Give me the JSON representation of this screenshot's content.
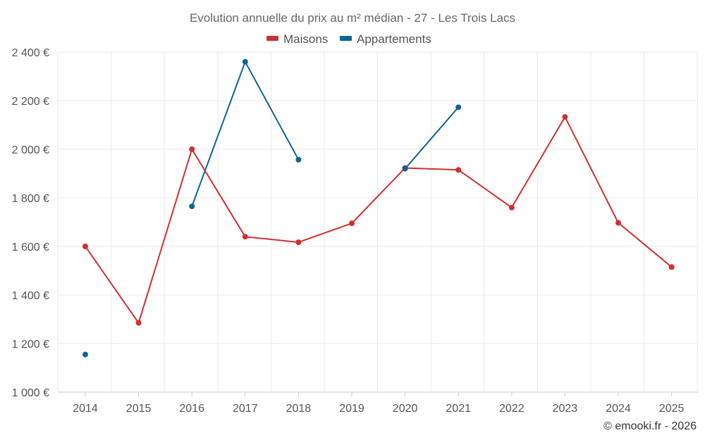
{
  "chart_data": {
    "type": "line",
    "title": "Evolution annuelle du prix au m² médian - 27 - Les Trois Lacs",
    "x": [
      "2014",
      "2015",
      "2016",
      "2017",
      "2018",
      "2019",
      "2020",
      "2021",
      "2022",
      "2023",
      "2024",
      "2025"
    ],
    "ylim": [
      1000,
      2400
    ],
    "yticks": [
      1000,
      1200,
      1400,
      1600,
      1800,
      2000,
      2200,
      2400
    ],
    "ytick_labels": [
      "1 000 €",
      "1 200 €",
      "1 400 €",
      "1 600 €",
      "1 800 €",
      "2 000 €",
      "2 200 €",
      "2 400 €"
    ],
    "grid": true,
    "legend_position": "top-center",
    "series": [
      {
        "name": "Maisons",
        "color": "#d32f2f",
        "values": [
          1600,
          1285,
          2000,
          1640,
          1617,
          1695,
          1923,
          1915,
          1760,
          2133,
          1697,
          1515
        ]
      },
      {
        "name": "Appartements",
        "color": "#0d6496",
        "values": [
          1155,
          null,
          1765,
          2360,
          1957,
          null,
          1920,
          2173,
          null,
          null,
          null,
          null
        ]
      }
    ]
  },
  "credit": "© emooki.fr - 2026"
}
